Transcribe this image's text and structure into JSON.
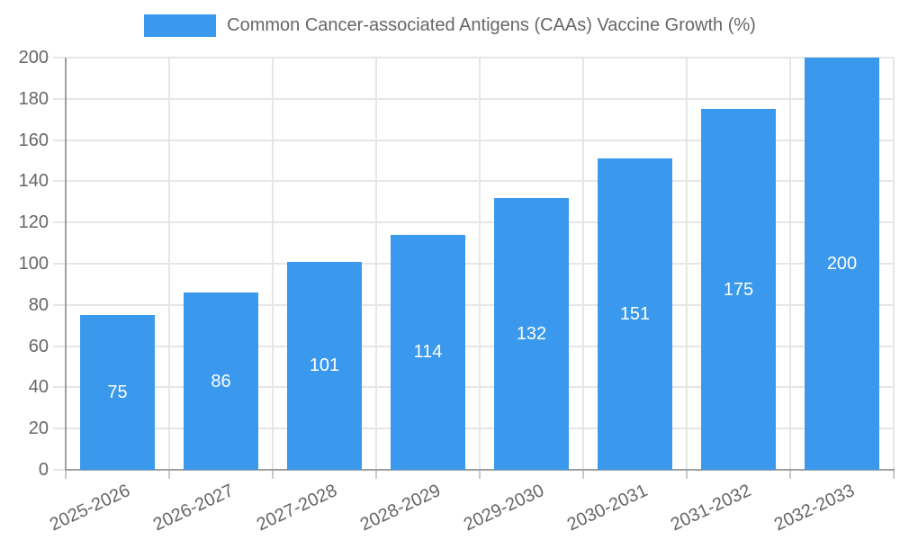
{
  "legend": {
    "label": "Common Cancer-associated Antigens (CAAs) Vaccine Growth (%)"
  },
  "colors": {
    "bar": "#3A99EC",
    "grid": "#E6E6E6",
    "tick": "#C9C9C9",
    "axis": "#A0A0A0",
    "text": "#666666",
    "value_label": "#FFFFFF"
  },
  "chart_data": {
    "type": "bar",
    "title": "Common Cancer-associated Antigens (CAAs) Vaccine Growth (%)",
    "categories": [
      "2025-2026",
      "2026-2027",
      "2027-2028",
      "2028-2029",
      "2029-2030",
      "2030-2031",
      "2031-2032",
      "2032-2033"
    ],
    "series": [
      {
        "name": "Common Cancer-associated Antigens (CAAs) Vaccine Growth (%)",
        "values": [
          75,
          86,
          101,
          114,
          132,
          151,
          175,
          200
        ]
      }
    ],
    "value_labels_shown": true,
    "value_label_position": "middle-of-bar",
    "xlabel": "",
    "ylabel": "",
    "ylim": [
      0,
      200
    ],
    "ytick_step": 20,
    "grid": true,
    "legend_position": "top-center",
    "x_label_rotation_deg": -25
  }
}
